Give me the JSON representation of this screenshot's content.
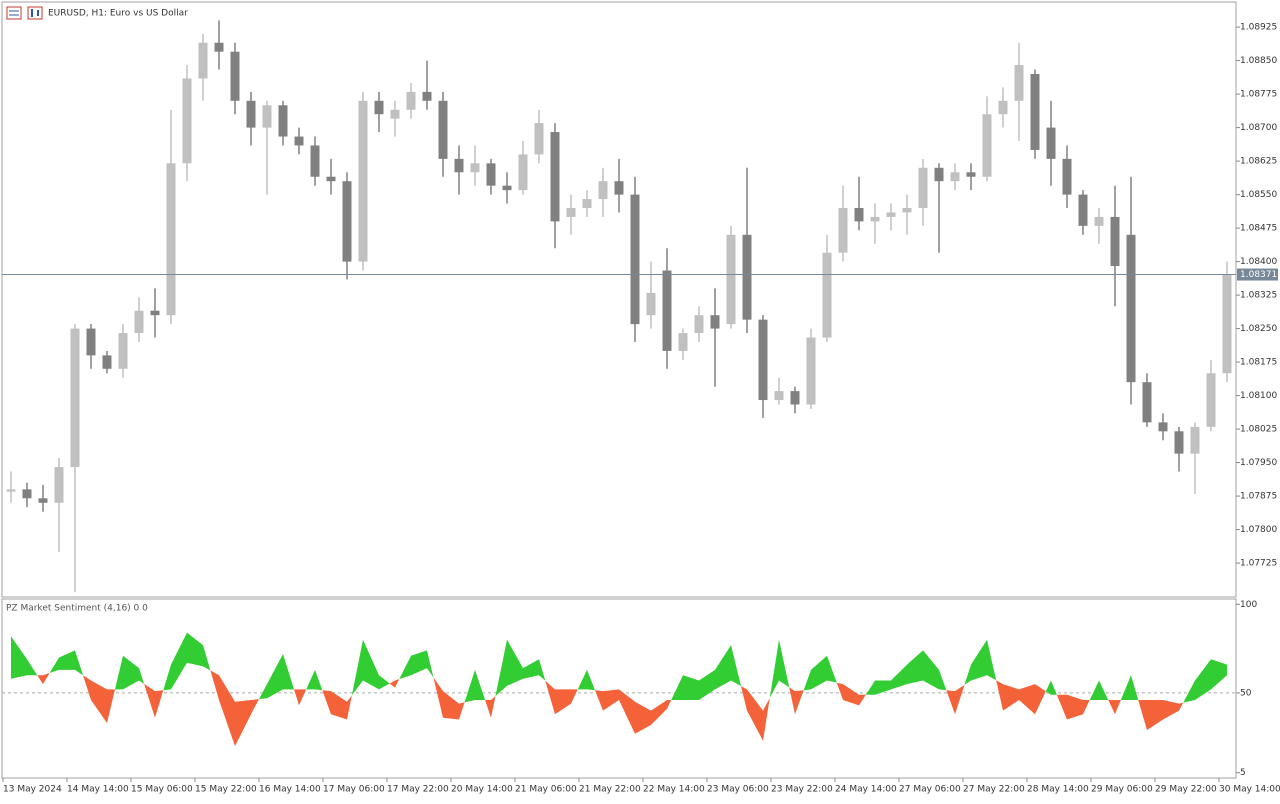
{
  "chart_data": [
    {
      "type": "candlestick",
      "title": "EURUSD, H1:  Euro vs US Dollar",
      "categories": [
        "13 May 2024",
        null,
        null,
        null,
        "14 May 14:00",
        null,
        null,
        null,
        "15 May 06:00",
        null,
        null,
        null,
        "15 May 22:00",
        null,
        null,
        null,
        "16 May 14:00",
        null,
        null,
        null,
        "17 May 06:00",
        null,
        null,
        null,
        "17 May 22:00",
        null,
        null,
        null,
        "20 May 14:00",
        null,
        null,
        null,
        "21 May 06:00",
        null,
        null,
        null,
        "21 May 22:00",
        null,
        null,
        null,
        "22 May 14:00",
        null,
        null,
        null,
        "23 May 06:00",
        null,
        null,
        null,
        "23 May 22:00",
        null,
        null,
        null,
        "24 May 14:00",
        null,
        null,
        null,
        "27 May 06:00",
        null,
        null,
        null,
        "27 May 22:00",
        null,
        null,
        null,
        "28 May 14:00",
        null,
        null,
        null,
        "29 May 06:00",
        null,
        null,
        null,
        "29 May 22:00",
        null,
        null,
        null,
        "30 May 14:00"
      ],
      "open": [
        1.07885,
        1.0789,
        1.0787,
        1.0786,
        1.0794,
        1.0825,
        1.0819,
        1.0816,
        1.0824,
        1.0829,
        1.0828,
        1.0862,
        1.0881,
        1.0889,
        1.0887,
        1.0876,
        1.087,
        1.0875,
        1.0868,
        1.0866,
        1.0859,
        1.0858,
        1.084,
        1.0876,
        1.0872,
        1.0874,
        1.0878,
        1.0876,
        1.0863,
        1.086,
        1.0862,
        1.0857,
        1.0856,
        1.0864,
        1.0869,
        1.085,
        1.0852,
        1.0854,
        1.0858,
        1.0855,
        1.0828,
        1.0838,
        1.082,
        1.0824,
        1.0828,
        1.0826,
        1.0846,
        1.0827,
        1.0809,
        1.0811,
        1.0808,
        1.0823,
        1.0842,
        1.0852,
        1.0849,
        1.085,
        1.0851,
        1.0852,
        1.0861,
        1.0858,
        1.086,
        1.0859,
        1.0873,
        1.0876,
        1.0882,
        1.087,
        1.0863,
        1.0855,
        1.0848,
        1.085,
        1.0846,
        1.0813,
        1.0804,
        1.0802,
        1.0797,
        1.0803,
        1.0815
      ],
      "high": [
        1.0793,
        1.07905,
        1.079,
        1.0796,
        1.0826,
        1.0826,
        1.082,
        1.0826,
        1.0832,
        1.0834,
        1.0874,
        1.0884,
        1.0891,
        1.0894,
        1.0889,
        1.0878,
        1.0876,
        1.0876,
        1.087,
        1.0868,
        1.0863,
        1.086,
        1.0878,
        1.0878,
        1.0876,
        1.088,
        1.0885,
        1.0878,
        1.0866,
        1.0866,
        1.0863,
        1.086,
        1.0867,
        1.0874,
        1.0871,
        1.0855,
        1.0856,
        1.0861,
        1.0863,
        1.0859,
        1.084,
        1.0843,
        1.0825,
        1.083,
        1.0834,
        1.0848,
        1.0861,
        1.0828,
        1.0814,
        1.0812,
        1.0825,
        1.0846,
        1.0857,
        1.0859,
        1.0853,
        1.0853,
        1.0855,
        1.0863,
        1.0862,
        1.0862,
        1.0862,
        1.0877,
        1.0879,
        1.0889,
        1.0883,
        1.0876,
        1.0866,
        1.0856,
        1.0852,
        1.0857,
        1.0859,
        1.0815,
        1.0806,
        1.0803,
        1.0804,
        1.0818,
        1.084
      ],
      "low": [
        1.0786,
        1.0785,
        1.0784,
        1.0775,
        1.0766,
        1.0816,
        1.0815,
        1.0814,
        1.0822,
        1.0823,
        1.0826,
        1.0858,
        1.0876,
        1.0883,
        1.0873,
        1.0866,
        1.0855,
        1.0866,
        1.0864,
        1.0857,
        1.0855,
        1.0836,
        1.0838,
        1.0869,
        1.0868,
        1.0872,
        1.0874,
        1.0859,
        1.0855,
        1.0857,
        1.0855,
        1.0853,
        1.0855,
        1.0862,
        1.0843,
        1.0846,
        1.085,
        1.085,
        1.0851,
        1.0822,
        1.0825,
        1.0816,
        1.0818,
        1.0822,
        1.0812,
        1.0825,
        1.0824,
        1.0805,
        1.0808,
        1.0806,
        1.0807,
        1.0822,
        1.084,
        1.0847,
        1.0844,
        1.0847,
        1.0846,
        1.0848,
        1.0842,
        1.0856,
        1.0856,
        1.0858,
        1.087,
        1.0867,
        1.0863,
        1.0857,
        1.0852,
        1.0846,
        1.0844,
        1.083,
        1.0808,
        1.0803,
        1.08,
        1.0793,
        1.0788,
        1.0802,
        1.0813
      ],
      "close": [
        1.0789,
        1.0787,
        1.0786,
        1.0794,
        1.0825,
        1.0819,
        1.0816,
        1.0824,
        1.0829,
        1.0828,
        1.0862,
        1.0881,
        1.0889,
        1.0887,
        1.0876,
        1.087,
        1.0875,
        1.0868,
        1.0866,
        1.0859,
        1.0858,
        1.084,
        1.0876,
        1.0873,
        1.0874,
        1.0878,
        1.0876,
        1.0863,
        1.086,
        1.0862,
        1.0857,
        1.0856,
        1.0864,
        1.0871,
        1.0849,
        1.0852,
        1.0854,
        1.0858,
        1.0855,
        1.0826,
        1.0833,
        1.082,
        1.0824,
        1.0828,
        1.0825,
        1.0846,
        1.0827,
        1.0809,
        1.0811,
        1.0808,
        1.0823,
        1.0842,
        1.0852,
        1.0849,
        1.085,
        1.0851,
        1.0852,
        1.0861,
        1.0858,
        1.086,
        1.0859,
        1.0873,
        1.0876,
        1.0884,
        1.0865,
        1.0863,
        1.0855,
        1.0848,
        1.085,
        1.0839,
        1.0813,
        1.0804,
        1.0802,
        1.0797,
        1.0803,
        1.0815,
        1.0837
      ],
      "up_color": "#c0c0c0",
      "down_color": "#808080",
      "last_price": 1.08371,
      "last_price_color": "#778899",
      "ylim": [
        1.07649,
        1.08979
      ],
      "yticks": [
        1.08925,
        {
          "value": 1.0885,
          "label": "1.08850"
        },
        1.08775,
        {
          "value": 1.087,
          "label": "1.08700"
        },
        1.08625,
        {
          "value": 1.0855,
          "label": "1.08550"
        },
        1.08475,
        {
          "value": 1.084,
          "label": "1.08400"
        },
        1.08325,
        {
          "value": 1.0825,
          "label": "1.08250"
        },
        1.08175,
        {
          "value": 1.081,
          "label": "1.08100"
        },
        1.08025,
        {
          "value": 1.0795,
          "label": "1.07950"
        },
        1.07875,
        {
          "value": 1.078,
          "label": "1.07800"
        },
        1.07725
      ]
    },
    {
      "type": "sentiment",
      "title": "PZ Market Sentiment (4,16) 0 0",
      "series": [
        {
          "color": "#32cd32",
          "values": [
            82,
            69,
            55,
            70,
            74,
            46,
            33,
            71,
            64,
            36,
            66,
            84,
            77,
            46,
            20,
            38,
            55,
            72,
            43,
            63,
            38,
            35,
            80,
            60,
            53,
            71,
            74,
            36,
            35,
            63,
            36,
            80,
            64,
            69,
            38,
            44,
            63,
            40,
            46,
            27,
            32,
            41,
            60,
            57,
            63,
            77,
            40,
            23,
            80,
            38,
            63,
            71,
            46,
            43,
            57,
            57,
            66,
            74,
            63,
            38,
            66,
            80,
            40,
            46,
            38,
            57,
            35,
            38,
            57,
            38,
            60,
            29,
            35,
            40,
            57,
            69,
            66
          ]
        },
        {
          "color": "#f4623a",
          "values": [
            58,
            60,
            60,
            63,
            63,
            57,
            52,
            52,
            57,
            51,
            52,
            67,
            65,
            60,
            45,
            46,
            47,
            52,
            52,
            52,
            51,
            45,
            57,
            52,
            57,
            60,
            64,
            51,
            44,
            46,
            46,
            54,
            58,
            60,
            52,
            52,
            52,
            51,
            52,
            45,
            40,
            46,
            46,
            46,
            52,
            57,
            52,
            40,
            57,
            51,
            52,
            57,
            55,
            49,
            49,
            52,
            55,
            57,
            52,
            51,
            57,
            60,
            55,
            52,
            55,
            49,
            49,
            46,
            46,
            46,
            46,
            46,
            46,
            44,
            46,
            52,
            60
          ]
        }
      ],
      "level": 50,
      "ylim": [
        2,
        103
      ],
      "yticks": [
        100,
        50,
        5
      ]
    }
  ]
}
